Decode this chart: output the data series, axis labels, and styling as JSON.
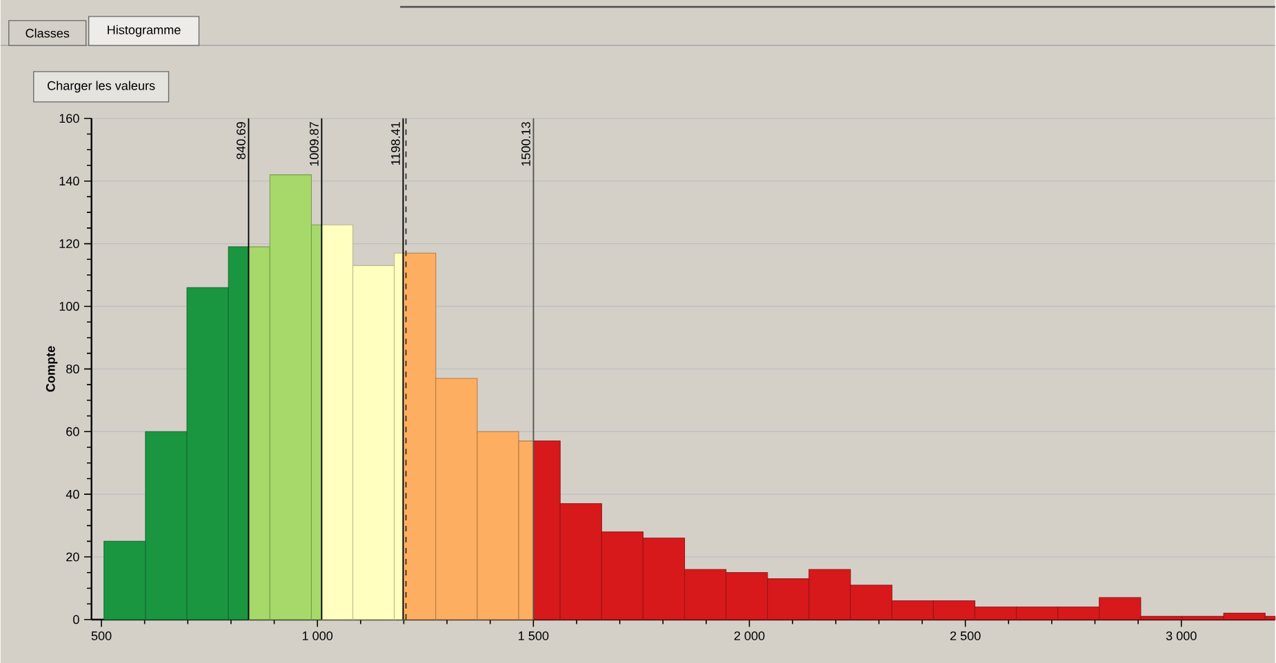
{
  "chart_data": {
    "type": "histogram",
    "ylabel": "Compte",
    "annotations": [
      "Classes",
      "Histogramme",
      "Charger les valeurs"
    ],
    "bins": [
      506,
      602,
      698,
      794,
      840.69,
      890,
      986,
      1009.87,
      1082,
      1178,
      1198.41,
      1274,
      1370,
      1466,
      1500.13,
      1562,
      1658,
      1754,
      1850,
      1946,
      2042,
      2138,
      2234,
      2330,
      2426,
      2522,
      2618,
      2714,
      2810,
      2906,
      3002,
      3098,
      3194,
      3217
    ],
    "values": [
      25,
      60,
      106,
      119,
      119,
      142,
      126,
      126,
      113,
      117,
      117,
      77,
      60,
      57,
      57,
      37,
      28,
      26,
      16,
      15,
      13,
      16,
      11,
      6,
      6,
      4,
      4,
      4,
      7,
      1,
      1,
      2,
      1
    ],
    "colors": [
      "#1a9641",
      "#1a9641",
      "#1a9641",
      "#1a9641",
      "#a6d96a",
      "#a6d96a",
      "#a6d96a",
      "#ffffc0",
      "#ffffc0",
      "#ffffc0",
      "#fdae61",
      "#fdae61",
      "#fdae61",
      "#fdae61",
      "#d7191c",
      "#d7191c",
      "#d7191c",
      "#d7191c",
      "#d7191c",
      "#d7191c",
      "#d7191c",
      "#d7191c",
      "#d7191c",
      "#d7191c",
      "#d7191c",
      "#d7191c",
      "#d7191c",
      "#d7191c",
      "#d7191c",
      "#d7191c",
      "#d7191c",
      "#d7191c",
      "#d7191c"
    ],
    "xlim": [
      477,
      3217
    ],
    "xticks": [
      500,
      {
        "value": 1000,
        "label": "1 000"
      },
      {
        "value": 1500,
        "label": "1 500"
      },
      {
        "value": 2000,
        "label": "2 000"
      },
      {
        "value": 2500,
        "label": "2 500"
      },
      {
        "value": 3000,
        "label": "3 000"
      }
    ],
    "ylim": [
      0,
      160
    ],
    "yticks": [
      0,
      20,
      40,
      60,
      80,
      100,
      120,
      140,
      160
    ],
    "grid": "y",
    "ref_lines": [
      {
        "axis": "x",
        "value": 840.69,
        "label": "840.69",
        "color": "#000000"
      },
      {
        "axis": "x",
        "value": 1009.87,
        "label": "1009.87",
        "color": "#000000"
      },
      {
        "axis": "x",
        "value": 1198.41,
        "label": "1198.41",
        "color": "#000000"
      },
      {
        "axis": "x",
        "value": 1205,
        "color": "#333333",
        "line_style": "dashed"
      },
      {
        "axis": "x",
        "value": 1500.13,
        "label": "1500.13",
        "color": "#555555"
      }
    ]
  }
}
